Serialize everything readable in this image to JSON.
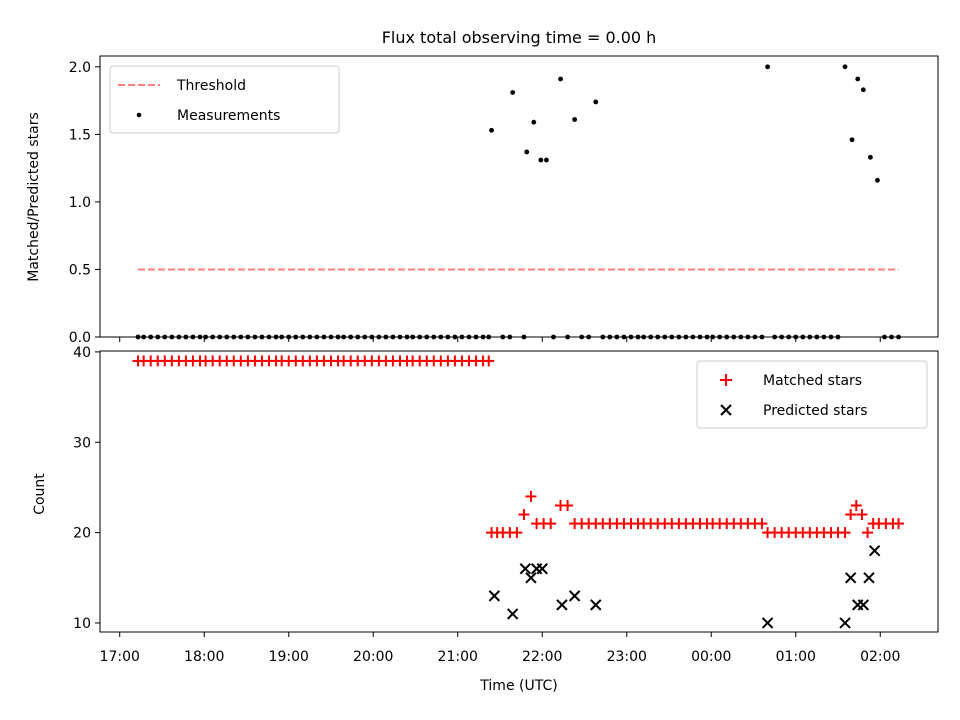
{
  "figure": {
    "title": "Flux total observing time = 0.00 h"
  },
  "chart_data": [
    {
      "type": "scatter",
      "panel": "top",
      "ylabel": "Matched/Predicted stars",
      "ylim": [
        0,
        2.08
      ],
      "yticks": [
        0.0,
        0.5,
        1.0,
        1.5,
        2.0
      ],
      "ytick_labels": [
        "0.0",
        "0.5",
        "1.0",
        "1.5",
        "2.0"
      ],
      "legend_position": "top-left",
      "threshold": {
        "name": "Threshold",
        "color": "#ff7f7f",
        "style": "dashed",
        "value": 0.5,
        "x_range": [
          "17:13",
          "02:13"
        ]
      },
      "series": [
        {
          "name": "Measurements",
          "color": "#000000",
          "marker": "dot",
          "points": [
            [
              "17:13",
              0
            ],
            [
              "17:17",
              0
            ],
            [
              "17:22",
              0
            ],
            [
              "17:27",
              0
            ],
            [
              "17:32",
              0
            ],
            [
              "17:37",
              0
            ],
            [
              "17:42",
              0
            ],
            [
              "17:47",
              0
            ],
            [
              "17:52",
              0
            ],
            [
              "17:57",
              0
            ],
            [
              "18:01",
              0
            ],
            [
              "18:06",
              0
            ],
            [
              "18:11",
              0
            ],
            [
              "18:16",
              0
            ],
            [
              "18:21",
              0
            ],
            [
              "18:26",
              0
            ],
            [
              "18:31",
              0
            ],
            [
              "18:36",
              0
            ],
            [
              "18:41",
              0
            ],
            [
              "18:46",
              0
            ],
            [
              "18:51",
              0
            ],
            [
              "18:55",
              0
            ],
            [
              "19:00",
              0
            ],
            [
              "19:05",
              0
            ],
            [
              "19:10",
              0
            ],
            [
              "19:15",
              0
            ],
            [
              "19:20",
              0
            ],
            [
              "19:25",
              0
            ],
            [
              "19:30",
              0
            ],
            [
              "19:35",
              0
            ],
            [
              "19:39",
              0
            ],
            [
              "19:44",
              0
            ],
            [
              "19:49",
              0
            ],
            [
              "19:54",
              0
            ],
            [
              "19:59",
              0
            ],
            [
              "20:04",
              0
            ],
            [
              "20:09",
              0
            ],
            [
              "20:14",
              0
            ],
            [
              "20:19",
              0
            ],
            [
              "20:24",
              0
            ],
            [
              "20:28",
              0
            ],
            [
              "20:33",
              0
            ],
            [
              "20:38",
              0
            ],
            [
              "20:43",
              0
            ],
            [
              "20:48",
              0
            ],
            [
              "20:53",
              0
            ],
            [
              "20:58",
              0
            ],
            [
              "21:03",
              0
            ],
            [
              "21:08",
              0
            ],
            [
              "21:13",
              0
            ],
            [
              "21:18",
              0
            ],
            [
              "21:22",
              0
            ],
            [
              "21:24",
              1.53
            ],
            [
              "21:32",
              0
            ],
            [
              "21:37",
              0
            ],
            [
              "21:39",
              1.81
            ],
            [
              "21:47",
              0
            ],
            [
              "21:49",
              1.37
            ],
            [
              "21:54",
              1.59
            ],
            [
              "21:59",
              1.31
            ],
            [
              "22:03",
              1.31
            ],
            [
              "22:08",
              0
            ],
            [
              "22:13",
              1.91
            ],
            [
              "22:18",
              0
            ],
            [
              "22:23",
              1.61
            ],
            [
              "22:28",
              0
            ],
            [
              "22:33",
              0
            ],
            [
              "22:38",
              1.74
            ],
            [
              "22:43",
              0
            ],
            [
              "22:48",
              0
            ],
            [
              "22:53",
              0
            ],
            [
              "22:58",
              0
            ],
            [
              "23:03",
              0
            ],
            [
              "23:08",
              0
            ],
            [
              "23:12",
              0
            ],
            [
              "23:17",
              0
            ],
            [
              "23:22",
              0
            ],
            [
              "23:27",
              0
            ],
            [
              "23:32",
              0
            ],
            [
              "23:37",
              0
            ],
            [
              "23:42",
              0
            ],
            [
              "23:47",
              0
            ],
            [
              "23:52",
              0
            ],
            [
              "23:57",
              0
            ],
            [
              "00:01",
              0
            ],
            [
              "00:06",
              0
            ],
            [
              "00:11",
              0
            ],
            [
              "00:16",
              0
            ],
            [
              "00:21",
              0
            ],
            [
              "00:26",
              0
            ],
            [
              "00:31",
              0
            ],
            [
              "00:36",
              0
            ],
            [
              "00:40",
              2.0
            ],
            [
              "00:45",
              0
            ],
            [
              "00:50",
              0
            ],
            [
              "00:55",
              0
            ],
            [
              "01:00",
              0
            ],
            [
              "01:05",
              0
            ],
            [
              "01:10",
              0
            ],
            [
              "01:15",
              0
            ],
            [
              "01:20",
              0
            ],
            [
              "01:25",
              0
            ],
            [
              "01:30",
              0
            ],
            [
              "01:35",
              2.0
            ],
            [
              "01:40",
              1.46
            ],
            [
              "01:44",
              1.91
            ],
            [
              "01:48",
              1.83
            ],
            [
              "01:53",
              1.33
            ],
            [
              "01:58",
              1.16
            ],
            [
              "02:03",
              0
            ],
            [
              "02:08",
              0
            ],
            [
              "02:13",
              0
            ]
          ]
        }
      ]
    },
    {
      "type": "scatter",
      "panel": "bottom",
      "xlabel": "Time (UTC)",
      "ylabel": "Count",
      "ylim": [
        9.0,
        40.1
      ],
      "yticks": [
        10,
        20,
        30,
        40
      ],
      "ytick_labels": [
        "10",
        "20",
        "30",
        "40"
      ],
      "xticks": [
        "17:00",
        "18:00",
        "19:00",
        "20:00",
        "21:00",
        "22:00",
        "23:00",
        "00:00",
        "01:00",
        "02:00"
      ],
      "xtick_labels": [
        "17:00",
        "18:00",
        "19:00",
        "20:00",
        "21:00",
        "22:00",
        "23:00",
        "00:00",
        "01:00",
        "02:00"
      ],
      "x_range": [
        "16:46",
        "02:41"
      ],
      "legend_position": "top-right",
      "series": [
        {
          "name": "Matched stars",
          "color": "#ff0000",
          "marker": "plus",
          "points": [
            [
              "17:13",
              39
            ],
            [
              "17:17",
              39
            ],
            [
              "17:22",
              39
            ],
            [
              "17:27",
              39
            ],
            [
              "17:32",
              39
            ],
            [
              "17:37",
              39
            ],
            [
              "17:42",
              39
            ],
            [
              "17:47",
              39
            ],
            [
              "17:52",
              39
            ],
            [
              "17:57",
              39
            ],
            [
              "18:01",
              39
            ],
            [
              "18:06",
              39
            ],
            [
              "18:11",
              39
            ],
            [
              "18:16",
              39
            ],
            [
              "18:21",
              39
            ],
            [
              "18:26",
              39
            ],
            [
              "18:31",
              39
            ],
            [
              "18:36",
              39
            ],
            [
              "18:41",
              39
            ],
            [
              "18:46",
              39
            ],
            [
              "18:51",
              39
            ],
            [
              "18:55",
              39
            ],
            [
              "19:00",
              39
            ],
            [
              "19:05",
              39
            ],
            [
              "19:10",
              39
            ],
            [
              "19:15",
              39
            ],
            [
              "19:20",
              39
            ],
            [
              "19:25",
              39
            ],
            [
              "19:30",
              39
            ],
            [
              "19:35",
              39
            ],
            [
              "19:39",
              39
            ],
            [
              "19:44",
              39
            ],
            [
              "19:49",
              39
            ],
            [
              "19:54",
              39
            ],
            [
              "19:59",
              39
            ],
            [
              "20:04",
              39
            ],
            [
              "20:09",
              39
            ],
            [
              "20:14",
              39
            ],
            [
              "20:19",
              39
            ],
            [
              "20:24",
              39
            ],
            [
              "20:28",
              39
            ],
            [
              "20:33",
              39
            ],
            [
              "20:38",
              39
            ],
            [
              "20:43",
              39
            ],
            [
              "20:48",
              39
            ],
            [
              "20:53",
              39
            ],
            [
              "20:58",
              39
            ],
            [
              "21:03",
              39
            ],
            [
              "21:08",
              39
            ],
            [
              "21:13",
              39
            ],
            [
              "21:18",
              39
            ],
            [
              "21:22",
              39
            ],
            [
              "21:24",
              20
            ],
            [
              "21:28",
              20
            ],
            [
              "21:32",
              20
            ],
            [
              "21:37",
              20
            ],
            [
              "21:42",
              20
            ],
            [
              "21:47",
              22
            ],
            [
              "21:52",
              24
            ],
            [
              "21:56",
              21
            ],
            [
              "22:01",
              21
            ],
            [
              "22:06",
              21
            ],
            [
              "22:13",
              23
            ],
            [
              "22:18",
              23
            ],
            [
              "22:23",
              21
            ],
            [
              "22:28",
              21
            ],
            [
              "22:33",
              21
            ],
            [
              "22:38",
              21
            ],
            [
              "22:43",
              21
            ],
            [
              "22:48",
              21
            ],
            [
              "22:53",
              21
            ],
            [
              "22:58",
              21
            ],
            [
              "23:03",
              21
            ],
            [
              "23:08",
              21
            ],
            [
              "23:12",
              21
            ],
            [
              "23:17",
              21
            ],
            [
              "23:22",
              21
            ],
            [
              "23:27",
              21
            ],
            [
              "23:32",
              21
            ],
            [
              "23:37",
              21
            ],
            [
              "23:42",
              21
            ],
            [
              "23:47",
              21
            ],
            [
              "23:52",
              21
            ],
            [
              "23:57",
              21
            ],
            [
              "00:01",
              21
            ],
            [
              "00:06",
              21
            ],
            [
              "00:11",
              21
            ],
            [
              "00:16",
              21
            ],
            [
              "00:21",
              21
            ],
            [
              "00:26",
              21
            ],
            [
              "00:31",
              21
            ],
            [
              "00:36",
              21
            ],
            [
              "00:40",
              20
            ],
            [
              "00:45",
              20
            ],
            [
              "00:50",
              20
            ],
            [
              "00:55",
              20
            ],
            [
              "01:00",
              20
            ],
            [
              "01:05",
              20
            ],
            [
              "01:10",
              20
            ],
            [
              "01:15",
              20
            ],
            [
              "01:20",
              20
            ],
            [
              "01:25",
              20
            ],
            [
              "01:30",
              20
            ],
            [
              "01:35",
              20
            ],
            [
              "01:39",
              22
            ],
            [
              "01:43",
              23
            ],
            [
              "01:47",
              22
            ],
            [
              "01:51",
              20
            ],
            [
              "01:55",
              21
            ],
            [
              "01:59",
              21
            ],
            [
              "02:04",
              21
            ],
            [
              "02:09",
              21
            ],
            [
              "02:13",
              21
            ]
          ]
        },
        {
          "name": "Predicted stars",
          "color": "#000000",
          "marker": "x",
          "points": [
            [
              "21:26",
              13
            ],
            [
              "21:39",
              11
            ],
            [
              "21:48",
              16
            ],
            [
              "21:52",
              15
            ],
            [
              "21:56",
              16
            ],
            [
              "22:00",
              16
            ],
            [
              "22:14",
              12
            ],
            [
              "22:23",
              13
            ],
            [
              "22:38",
              12
            ],
            [
              "00:40",
              10
            ],
            [
              "01:35",
              10
            ],
            [
              "01:39",
              15
            ],
            [
              "01:44",
              12
            ],
            [
              "01:48",
              12
            ],
            [
              "01:52",
              15
            ],
            [
              "01:56",
              18
            ]
          ]
        }
      ]
    }
  ]
}
